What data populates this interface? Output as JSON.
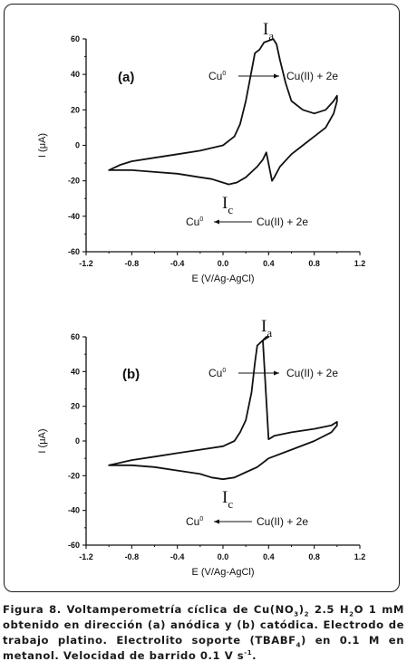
{
  "chart_data": [
    {
      "type": "line",
      "panel_label": "(a)",
      "xlabel": "E (V/Ag-AgCl)",
      "ylabel": "I (μA)",
      "xlim": [
        -1.2,
        1.2
      ],
      "ylim": [
        -60,
        60
      ],
      "xticks": [
        "-1.2",
        "-0.8",
        "-0.4",
        "0.0",
        "0.4",
        "0.8",
        "1.2"
      ],
      "yticks": [
        "60",
        "40",
        "20",
        "0",
        "-20",
        "-40",
        "-60"
      ],
      "series": [
        {
          "values": [
            [
              -1.0,
              -14
            ],
            [
              -0.9,
              -11
            ],
            [
              -0.8,
              -9
            ],
            [
              -0.6,
              -7
            ],
            [
              -0.4,
              -5
            ],
            [
              -0.2,
              -3
            ],
            [
              0.0,
              0
            ],
            [
              0.1,
              5
            ],
            [
              0.15,
              12
            ],
            [
              0.2,
              25
            ],
            [
              0.25,
              42
            ],
            [
              0.28,
              52
            ],
            [
              0.32,
              54
            ],
            [
              0.36,
              58
            ],
            [
              0.4,
              59
            ],
            [
              0.44,
              60
            ],
            [
              0.47,
              57
            ],
            [
              0.5,
              48
            ],
            [
              0.55,
              35
            ],
            [
              0.6,
              25
            ],
            [
              0.7,
              20
            ],
            [
              0.8,
              18
            ],
            [
              0.9,
              20
            ],
            [
              0.97,
              25
            ],
            [
              1.0,
              28
            ],
            [
              1.0,
              25
            ],
            [
              0.97,
              18
            ],
            [
              0.9,
              10
            ],
            [
              0.8,
              5
            ],
            [
              0.7,
              0
            ],
            [
              0.6,
              -5
            ],
            [
              0.5,
              -12
            ],
            [
              0.45,
              -18
            ],
            [
              0.43,
              -20
            ],
            [
              0.38,
              -4
            ],
            [
              0.35,
              -8
            ],
            [
              0.3,
              -12
            ],
            [
              0.25,
              -15
            ],
            [
              0.2,
              -18
            ],
            [
              0.12,
              -21
            ],
            [
              0.05,
              -22
            ],
            [
              0.0,
              -21
            ],
            [
              -0.1,
              -19
            ],
            [
              -0.2,
              -18
            ],
            [
              -0.4,
              -16
            ],
            [
              -0.6,
              -15
            ],
            [
              -0.8,
              -14
            ],
            [
              -1.0,
              -14
            ]
          ]
        }
      ],
      "annotations": {
        "peak_a": "I",
        "peak_a_sub": "a",
        "peak_c": "I",
        "peak_c_sub": "c",
        "ox_left": "Cu",
        "ox_left_sup": "0",
        "ox_right": "Cu(II) + 2e",
        "red_left": "Cu",
        "red_left_sup": "0",
        "red_right": "Cu(II) + 2e"
      }
    },
    {
      "type": "line",
      "panel_label": "(b)",
      "xlabel": "E (V/Ag-AgCl)",
      "ylabel": "I (μA)",
      "xlim": [
        -1.2,
        1.2
      ],
      "ylim": [
        -60,
        60
      ],
      "xticks": [
        "-1.2",
        "-0.8",
        "-0.4",
        "0.0",
        "0.4",
        "0.8",
        "1.2"
      ],
      "yticks": [
        "60",
        "40",
        "20",
        "0",
        "-20",
        "-40",
        "-60"
      ],
      "series": [
        {
          "values": [
            [
              -1.0,
              -14
            ],
            [
              -0.8,
              -11
            ],
            [
              -0.6,
              -9
            ],
            [
              -0.4,
              -7
            ],
            [
              -0.2,
              -5
            ],
            [
              0.0,
              -3
            ],
            [
              0.1,
              0
            ],
            [
              0.15,
              5
            ],
            [
              0.2,
              12
            ],
            [
              0.25,
              28
            ],
            [
              0.28,
              45
            ],
            [
              0.3,
              55
            ],
            [
              0.35,
              58
            ],
            [
              0.4,
              60
            ],
            [
              0.38,
              60
            ],
            [
              0.35,
              58
            ],
            [
              0.4,
              1
            ],
            [
              0.45,
              3
            ],
            [
              0.6,
              5
            ],
            [
              0.8,
              7
            ],
            [
              0.95,
              9
            ],
            [
              1.0,
              11
            ],
            [
              1.0,
              9
            ],
            [
              0.95,
              5
            ],
            [
              0.8,
              0
            ],
            [
              0.6,
              -5
            ],
            [
              0.4,
              -10
            ],
            [
              0.3,
              -15
            ],
            [
              0.2,
              -18
            ],
            [
              0.1,
              -21
            ],
            [
              0.0,
              -22
            ],
            [
              -0.1,
              -21
            ],
            [
              -0.2,
              -19
            ],
            [
              -0.4,
              -17
            ],
            [
              -0.6,
              -15
            ],
            [
              -0.8,
              -14
            ],
            [
              -1.0,
              -14
            ]
          ]
        }
      ],
      "annotations": {
        "peak_a": "I",
        "peak_a_sub": "a",
        "peak_c": "I",
        "peak_c_sub": "c",
        "ox_left": "Cu",
        "ox_left_sup": "0",
        "ox_right": "Cu(II) + 2e",
        "red_left": "Cu",
        "red_left_sup": "0",
        "red_right": "Cu(II) + 2e"
      }
    }
  ],
  "caption": {
    "t1": "Figura 8. Voltamperometría cíclica de Cu(NO",
    "s1": "3",
    "s2": "2",
    "t2": " 2.5 H",
    "s3": "2",
    "t3": "O 1 mM obtenido en dirección (a) anódica y (b) catódica. Electrodo de trabajo platino. Electrolito soporte (TBABF",
    "s4": "4",
    "t4": ") en 0.1 M en metanol. Velocidad de barrido 0.1 V s",
    "sup1": "-1",
    "t5": "."
  }
}
